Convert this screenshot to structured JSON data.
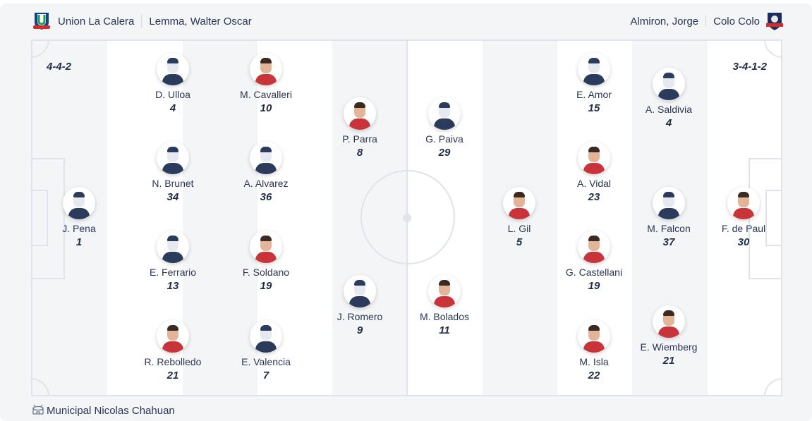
{
  "home": {
    "team": "Union La Calera",
    "coach": "Lemma, Walter Oscar",
    "formation": "4-4-2",
    "players": [
      {
        "name": "J. Pena",
        "number": "1",
        "photo": false
      },
      {
        "name": "D. Ulloa",
        "number": "4",
        "photo": false
      },
      {
        "name": "N. Brunet",
        "number": "34",
        "photo": false
      },
      {
        "name": "E. Ferrario",
        "number": "13",
        "photo": false
      },
      {
        "name": "R. Rebolledo",
        "number": "21",
        "photo": true
      },
      {
        "name": "M. Cavalleri",
        "number": "10",
        "photo": true
      },
      {
        "name": "A. Alvarez",
        "number": "36",
        "photo": false
      },
      {
        "name": "F. Soldano",
        "number": "19",
        "photo": true
      },
      {
        "name": "E. Valencia",
        "number": "7",
        "photo": false
      },
      {
        "name": "P. Parra",
        "number": "8",
        "photo": true
      },
      {
        "name": "J. Romero",
        "number": "9",
        "photo": false
      }
    ]
  },
  "away": {
    "team": "Colo Colo",
    "coach": "Almiron, Jorge",
    "formation": "3-4-1-2",
    "players": [
      {
        "name": "G. Paiva",
        "number": "29",
        "photo": false
      },
      {
        "name": "M. Bolados",
        "number": "11",
        "photo": true
      },
      {
        "name": "L. Gil",
        "number": "5",
        "photo": true
      },
      {
        "name": "E. Amor",
        "number": "15",
        "photo": false
      },
      {
        "name": "A. Vidal",
        "number": "23",
        "photo": true
      },
      {
        "name": "G. Castellani",
        "number": "19",
        "photo": true
      },
      {
        "name": "M. Isla",
        "number": "22",
        "photo": true
      },
      {
        "name": "A. Saldivia",
        "number": "4",
        "photo": false
      },
      {
        "name": "M. Falcon",
        "number": "37",
        "photo": false
      },
      {
        "name": "E. Wiemberg",
        "number": "21",
        "photo": true
      },
      {
        "name": "F. de Paul",
        "number": "30",
        "photo": true
      }
    ]
  },
  "venue": {
    "name": "Municipal Nicolas Chahuan",
    "icon": "stadium-icon"
  },
  "colors": {
    "pitch_light": "#f4f5f7",
    "pitch_white": "#ffffff",
    "lines": "#dfe4ec",
    "text": "#1f2d45"
  }
}
